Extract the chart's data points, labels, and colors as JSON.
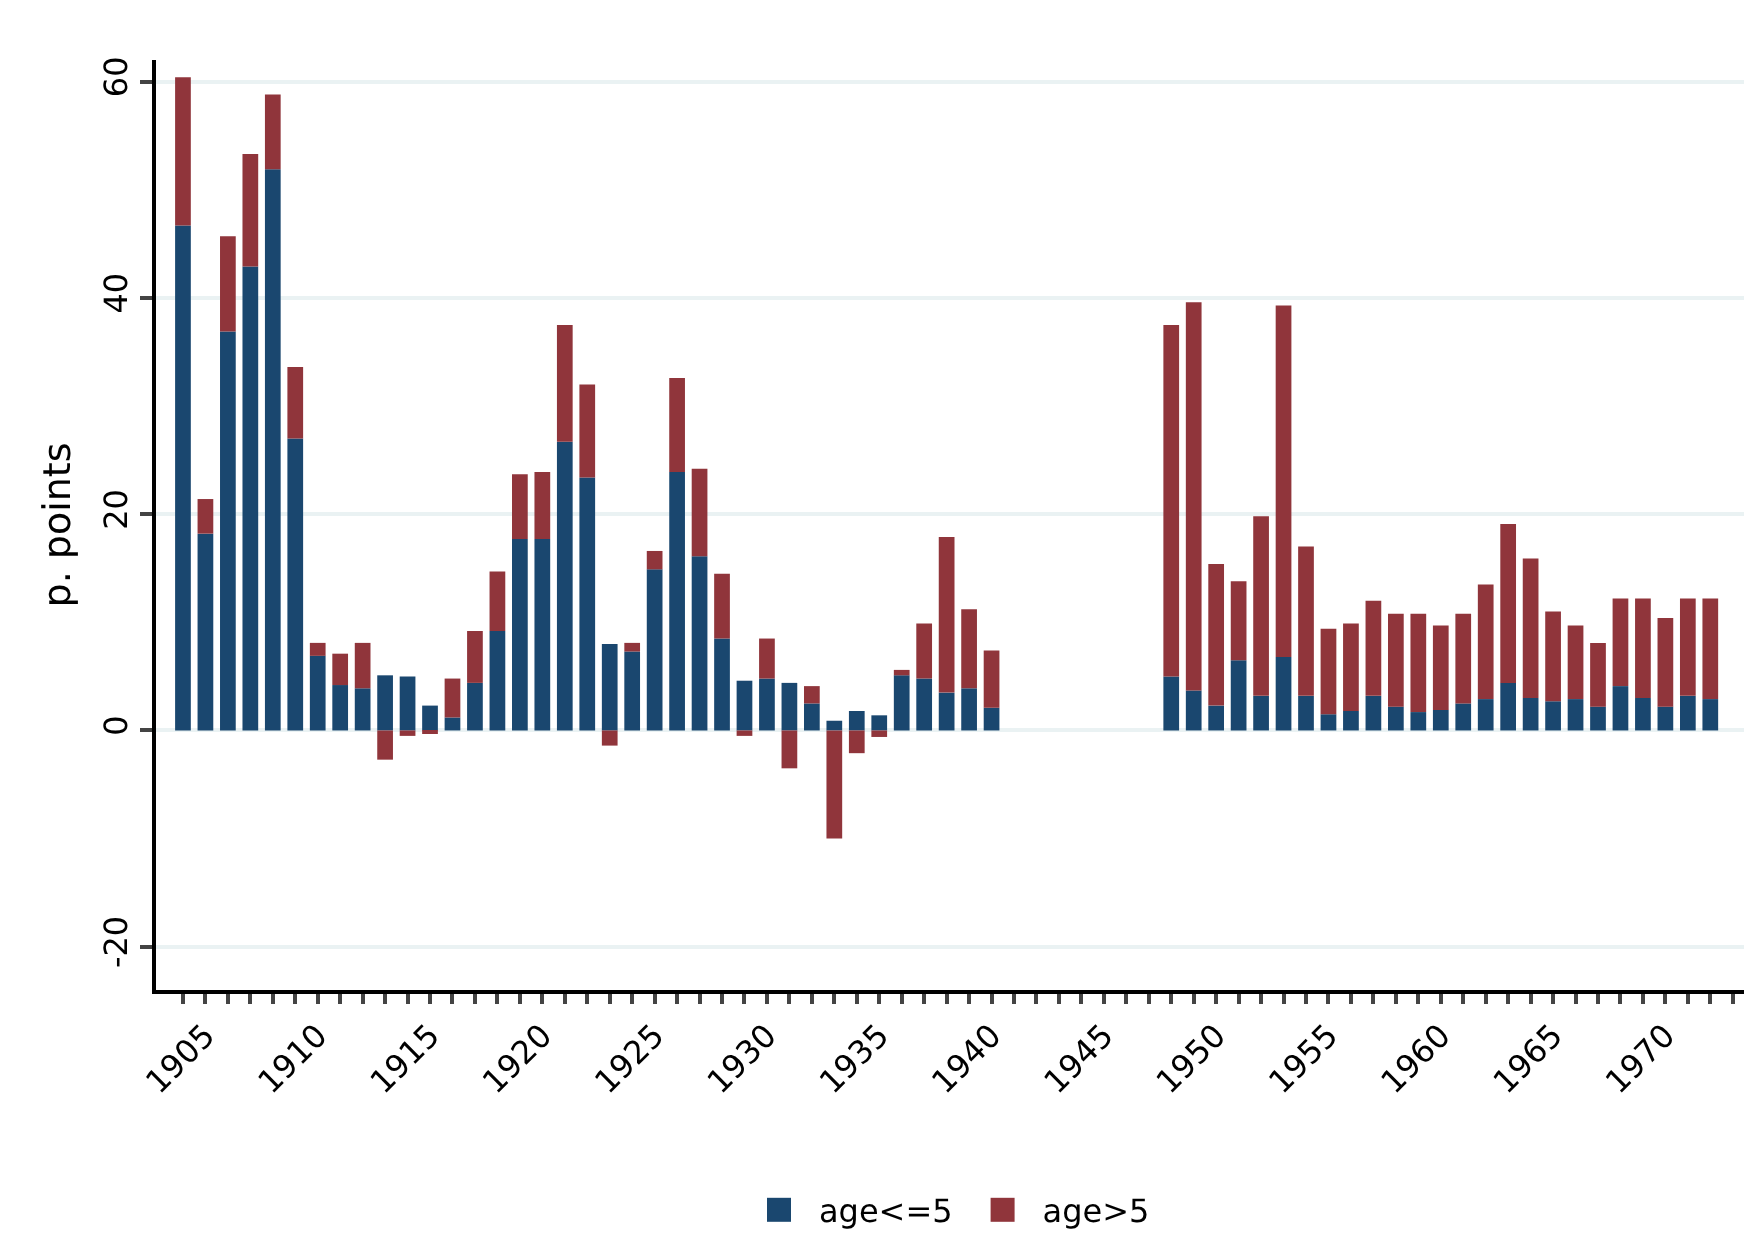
{
  "chart_data": {
    "type": "bar",
    "stacked": true,
    "ylabel": "p. points",
    "x": [
      1904,
      1905,
      1906,
      1907,
      1908,
      1909,
      1910,
      1911,
      1912,
      1913,
      1914,
      1915,
      1916,
      1917,
      1918,
      1919,
      1920,
      1921,
      1922,
      1923,
      1924,
      1925,
      1926,
      1927,
      1928,
      1929,
      1930,
      1931,
      1932,
      1933,
      1934,
      1935,
      1936,
      1937,
      1938,
      1939,
      1940,
      1948,
      1949,
      1950,
      1951,
      1952,
      1953,
      1954,
      1955,
      1956,
      1957,
      1958,
      1959,
      1960,
      1961,
      1962,
      1963,
      1964,
      1965,
      1966,
      1967,
      1968,
      1969,
      1970,
      1971,
      1972
    ],
    "series": [
      {
        "name": "age<=5",
        "color": "#1a476f",
        "values": [
          46.7,
          18.2,
          36.9,
          42.9,
          51.9,
          27.0,
          6.9,
          4.2,
          3.9,
          5.1,
          5.0,
          2.3,
          1.2,
          4.4,
          9.2,
          17.7,
          17.7,
          26.7,
          23.4,
          8.0,
          7.3,
          14.9,
          23.9,
          16.1,
          8.5,
          4.6,
          4.8,
          4.4,
          2.5,
          0.9,
          1.8,
          1.4,
          5.1,
          4.8,
          3.5,
          3.9,
          2.1,
          5.0,
          3.7,
          2.3,
          6.5,
          3.2,
          6.8,
          3.2,
          1.5,
          1.8,
          3.2,
          2.2,
          1.7,
          1.9,
          2.5,
          2.9,
          4.4,
          3.0,
          2.7,
          2.9,
          2.2,
          4.1,
          3.0,
          2.2,
          3.2,
          2.9
        ]
      },
      {
        "name": "age>5",
        "color": "#90353b",
        "values": [
          13.7,
          3.2,
          8.8,
          10.4,
          6.9,
          6.6,
          1.2,
          2.9,
          4.2,
          -2.7,
          -0.5,
          -0.3,
          3.6,
          4.8,
          5.5,
          6.0,
          6.2,
          10.8,
          8.6,
          -1.4,
          0.8,
          1.7,
          8.7,
          8.1,
          6.0,
          -0.5,
          3.7,
          -3.5,
          1.6,
          -10.0,
          -2.1,
          -0.6,
          0.5,
          5.1,
          14.4,
          7.3,
          5.3,
          32.5,
          35.9,
          13.1,
          7.3,
          16.6,
          32.5,
          13.8,
          7.9,
          8.1,
          8.8,
          8.6,
          9.1,
          7.8,
          8.3,
          10.6,
          14.7,
          12.9,
          8.3,
          6.8,
          5.9,
          8.1,
          9.2,
          8.2,
          9.0,
          9.3
        ]
      }
    ],
    "xlim": [
      1902.8,
      1973.5
    ],
    "xticks": [
      {
        "value": 1904,
        "label": null
      },
      1905,
      {
        "value": 1906,
        "label": null
      },
      {
        "value": 1907,
        "label": null
      },
      {
        "value": 1908,
        "label": null
      },
      {
        "value": 1909,
        "label": null
      },
      1910,
      {
        "value": 1911,
        "label": null
      },
      {
        "value": 1912,
        "label": null
      },
      {
        "value": 1913,
        "label": null
      },
      {
        "value": 1914,
        "label": null
      },
      1915,
      {
        "value": 1916,
        "label": null
      },
      {
        "value": 1917,
        "label": null
      },
      {
        "value": 1918,
        "label": null
      },
      {
        "value": 1919,
        "label": null
      },
      1920,
      {
        "value": 1921,
        "label": null
      },
      {
        "value": 1922,
        "label": null
      },
      {
        "value": 1923,
        "label": null
      },
      {
        "value": 1924,
        "label": null
      },
      1925,
      {
        "value": 1926,
        "label": null
      },
      {
        "value": 1927,
        "label": null
      },
      {
        "value": 1928,
        "label": null
      },
      {
        "value": 1929,
        "label": null
      },
      1930,
      {
        "value": 1931,
        "label": null
      },
      {
        "value": 1932,
        "label": null
      },
      {
        "value": 1933,
        "label": null
      },
      {
        "value": 1934,
        "label": null
      },
      1935,
      {
        "value": 1936,
        "label": null
      },
      {
        "value": 1937,
        "label": null
      },
      {
        "value": 1938,
        "label": null
      },
      {
        "value": 1939,
        "label": null
      },
      1940,
      {
        "value": 1941,
        "label": null
      },
      {
        "value": 1942,
        "label": null
      },
      {
        "value": 1943,
        "label": null
      },
      {
        "value": 1944,
        "label": null
      },
      1945,
      {
        "value": 1946,
        "label": null
      },
      {
        "value": 1947,
        "label": null
      },
      {
        "value": 1948,
        "label": null
      },
      {
        "value": 1949,
        "label": null
      },
      1950,
      {
        "value": 1951,
        "label": null
      },
      {
        "value": 1952,
        "label": null
      },
      {
        "value": 1953,
        "label": null
      },
      {
        "value": 1954,
        "label": null
      },
      1955,
      {
        "value": 1956,
        "label": null
      },
      {
        "value": 1957,
        "label": null
      },
      {
        "value": 1958,
        "label": null
      },
      {
        "value": 1959,
        "label": null
      },
      1960,
      {
        "value": 1961,
        "label": null
      },
      {
        "value": 1962,
        "label": null
      },
      {
        "value": 1963,
        "label": null
      },
      {
        "value": 1964,
        "label": null
      },
      1965,
      {
        "value": 1966,
        "label": null
      },
      {
        "value": 1967,
        "label": null
      },
      {
        "value": 1968,
        "label": null
      },
      {
        "value": 1969,
        "label": null
      },
      1970,
      {
        "value": 1971,
        "label": null
      },
      {
        "value": 1972,
        "label": null
      },
      {
        "value": 1973,
        "label": null
      }
    ],
    "ylim": [
      -24,
      62
    ],
    "yticks": [
      -20,
      0,
      20,
      40,
      60
    ],
    "grid": "y",
    "legend": "bottom"
  }
}
